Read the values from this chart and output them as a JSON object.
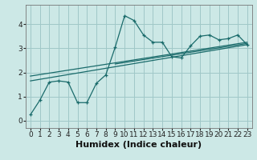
{
  "xlabel": "Humidex (Indice chaleur)",
  "bg_color": "#cce8e6",
  "grid_color": "#a0c8c8",
  "line_color": "#1a6b6b",
  "xlim": [
    -0.5,
    23.5
  ],
  "ylim": [
    -0.3,
    4.8
  ],
  "xticks": [
    0,
    1,
    2,
    3,
    4,
    5,
    6,
    7,
    8,
    9,
    10,
    11,
    12,
    13,
    14,
    15,
    16,
    17,
    18,
    19,
    20,
    21,
    22,
    23
  ],
  "yticks": [
    0,
    1,
    2,
    3,
    4
  ],
  "curve1_x": [
    0,
    1,
    2,
    3,
    4,
    5,
    6,
    7,
    8,
    9,
    10,
    11,
    12,
    13,
    14,
    15,
    16,
    17,
    18,
    19,
    20,
    21,
    22,
    23
  ],
  "curve1_y": [
    0.25,
    0.85,
    1.6,
    1.65,
    1.6,
    0.75,
    0.75,
    1.55,
    1.9,
    3.05,
    4.35,
    4.15,
    3.55,
    3.25,
    3.25,
    2.65,
    2.6,
    3.1,
    3.5,
    3.55,
    3.35,
    3.4,
    3.55,
    3.15
  ],
  "trend1_x": [
    0,
    23
  ],
  "trend1_y": [
    1.65,
    3.15
  ],
  "trend2_x": [
    0,
    23
  ],
  "trend2_y": [
    1.85,
    3.25
  ],
  "trend3_x": [
    9,
    23
  ],
  "trend3_y": [
    2.35,
    3.2
  ],
  "xlabel_fontsize": 8,
  "tick_fontsize": 6.5
}
